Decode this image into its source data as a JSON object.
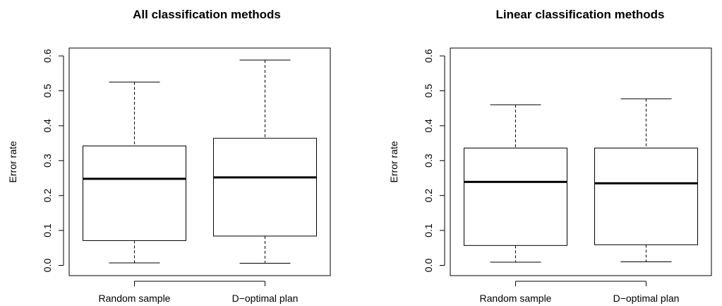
{
  "chart_data": [
    {
      "type": "boxplot",
      "title": "All classification methods",
      "xlabel": "",
      "ylabel": "Error rate",
      "ylim": [
        0.0,
        0.6
      ],
      "yticks": [
        "0.0",
        "0.1",
        "0.2",
        "0.3",
        "0.4",
        "0.5",
        "0.6"
      ],
      "categories": [
        "Random sample",
        "D−optimal plan"
      ],
      "boxes": [
        {
          "category": "Random sample",
          "min": 0.007,
          "q1": 0.071,
          "median": 0.248,
          "q3": 0.342,
          "max": 0.525
        },
        {
          "category": "D−optimal plan",
          "min": 0.006,
          "q1": 0.084,
          "median": 0.252,
          "q3": 0.364,
          "max": 0.588
        }
      ],
      "grid": false
    },
    {
      "type": "boxplot",
      "title": "Linear classification methods",
      "xlabel": "",
      "ylabel": "Error rate",
      "ylim": [
        0.0,
        0.6
      ],
      "yticks": [
        "0.0",
        "0.1",
        "0.2",
        "0.3",
        "0.4",
        "0.5",
        "0.6"
      ],
      "categories": [
        "Random sample",
        "D−optimal plan"
      ],
      "boxes": [
        {
          "category": "Random sample",
          "min": 0.009,
          "q1": 0.057,
          "median": 0.239,
          "q3": 0.336,
          "max": 0.46
        },
        {
          "category": "D−optimal plan",
          "min": 0.01,
          "q1": 0.059,
          "median": 0.235,
          "q3": 0.336,
          "max": 0.477
        }
      ],
      "grid": false
    }
  ]
}
